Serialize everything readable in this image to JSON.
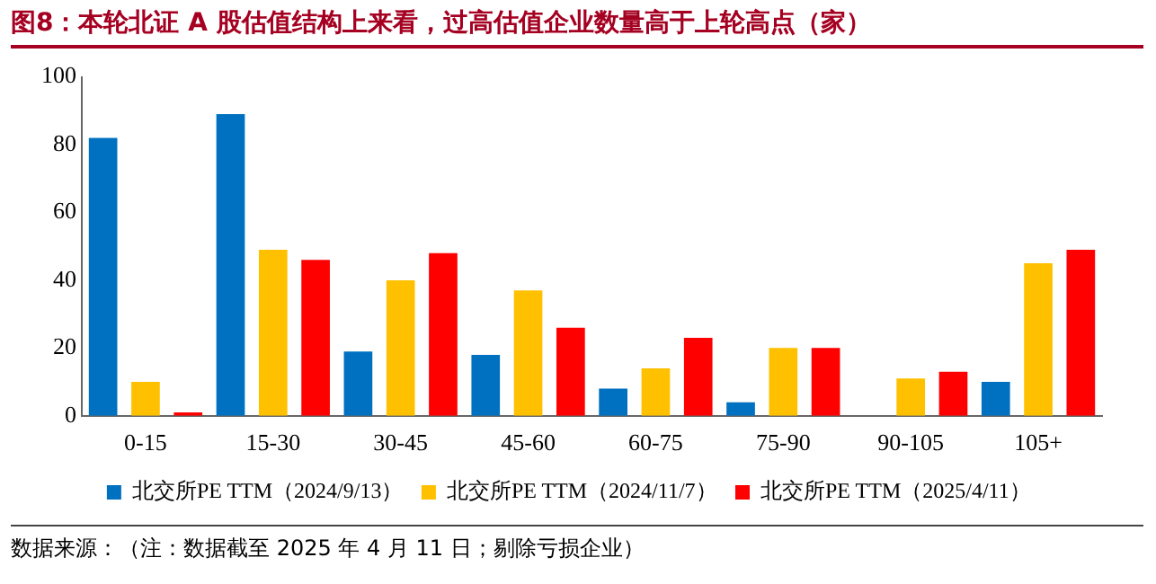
{
  "chart_data": {
    "type": "bar",
    "title": "图8：本轮北证 A 股估值结构上来看，过高估值企业数量高于上轮高点（家）",
    "categories": [
      "0-15",
      "15-30",
      "30-45",
      "45-60",
      "60-75",
      "75-90",
      "90-105",
      "105+"
    ],
    "series": [
      {
        "name": "北交所PE TTM（2024/9/13）",
        "color": "#0070c0",
        "values": [
          82,
          89,
          19,
          18,
          8,
          4,
          0,
          10
        ]
      },
      {
        "name": "北交所PE TTM（2024/11/7）",
        "color": "#ffc000",
        "values": [
          10,
          49,
          40,
          37,
          14,
          20,
          11,
          45
        ]
      },
      {
        "name": "北交所PE TTM（2025/4/11）",
        "color": "#ff0000",
        "values": [
          1,
          46,
          48,
          26,
          23,
          20,
          13,
          49
        ]
      }
    ],
    "ylim": [
      0,
      100
    ],
    "yticks": [
      0,
      20,
      40,
      60,
      80,
      100
    ],
    "grid": false,
    "legend": "bottom",
    "annotations": [
      "数据来源：（注：数据截至 2025 年 4 月 11 日；剔除亏损企业）"
    ]
  }
}
